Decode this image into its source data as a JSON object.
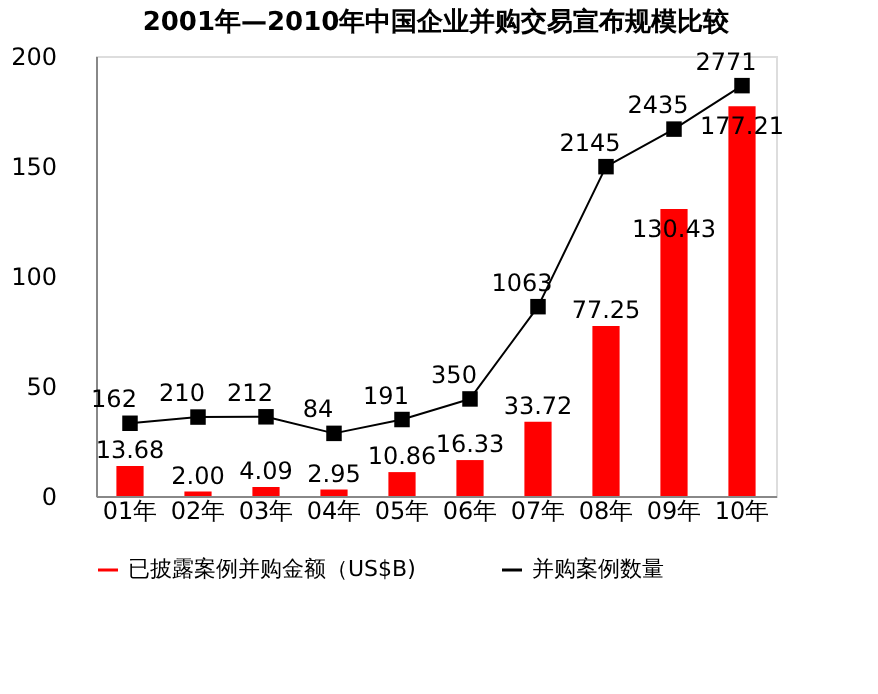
{
  "chart_data": {
    "type": "bar",
    "title": "2001年—2010年中国企业并购交易宣布规模比较",
    "categories": [
      "01年",
      "02年",
      "03年",
      "04年",
      "05年",
      "06年",
      "07年",
      "08年",
      "09年",
      "10年"
    ],
    "series": [
      {
        "name": "已披露案例并购金额（US$B)",
        "color": "#ff0000",
        "values": [
          13.68,
          2.0,
          4.09,
          2.95,
          10.86,
          16.33,
          33.72,
          77.25,
          130.43,
          177.21
        ],
        "value_labels": [
          "13.68",
          "2.00",
          "4.09",
          "2.95",
          "10.86",
          "16.33",
          "33.72",
          "77.25",
          "130.43",
          "177.21"
        ]
      },
      {
        "name": "并购案例数量",
        "type": "line",
        "axis": "y2",
        "color": "#000000",
        "marker": "square",
        "values": [
          162,
          210,
          212,
          84,
          191,
          350,
          1063,
          2145,
          2435,
          2771
        ],
        "value_labels": [
          "162",
          "210",
          "212",
          "84",
          "191",
          "350",
          "1063",
          "2145",
          "2435",
          "2771"
        ]
      }
    ],
    "ylim": [
      0,
      200
    ],
    "yticks": [
      0,
      50,
      100,
      150,
      200
    ],
    "y2lim": [
      -400,
      3000
    ],
    "tick_labels": "xy",
    "grid": false,
    "legend": "bottom"
  }
}
